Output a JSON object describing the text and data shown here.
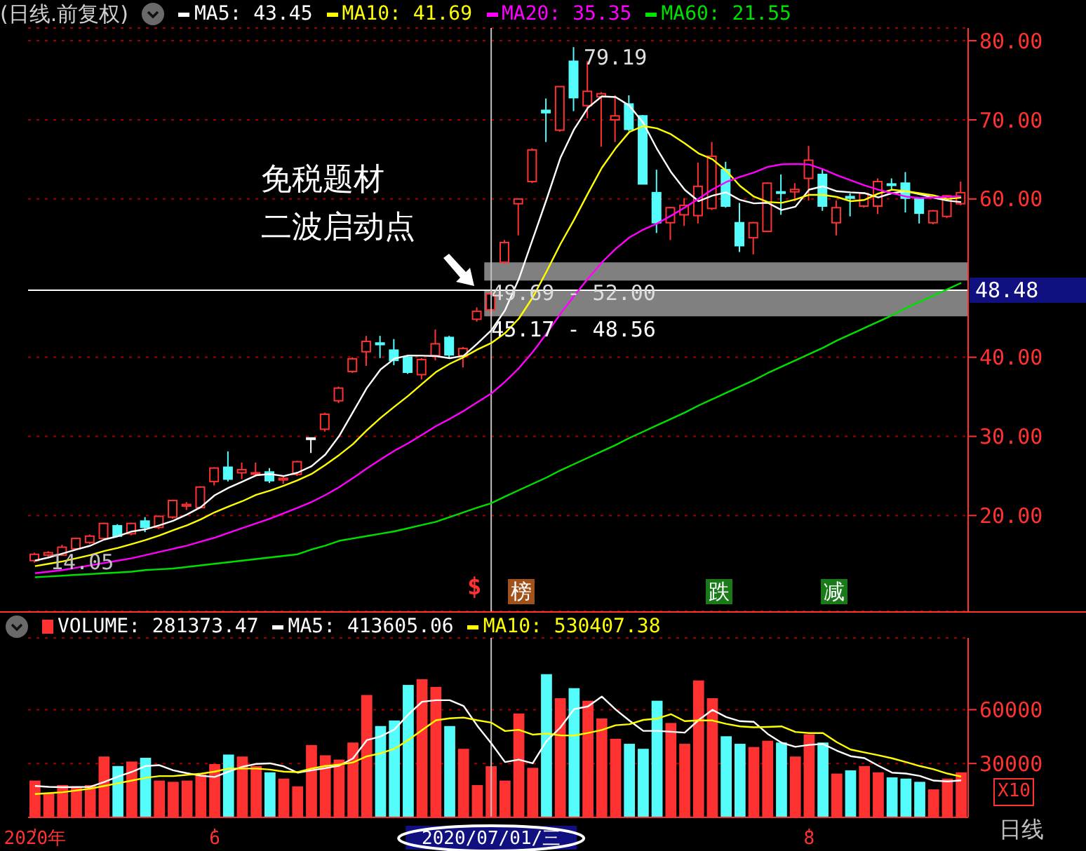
{
  "chart_data": [
    {
      "type": "candlestick",
      "title": "(日线.前复权)",
      "legend": "top",
      "grid": "y",
      "tick_labels": "y",
      "categories": [
        "2020年",
        null,
        null,
        null,
        null,
        null,
        null,
        null,
        null,
        null,
        null,
        null,
        null,
        "6",
        null,
        null,
        null,
        null,
        null,
        null,
        null,
        null,
        null,
        null,
        null,
        null,
        null,
        null,
        null,
        null,
        null,
        null,
        null,
        "2020/07/01/三",
        null,
        null,
        null,
        null,
        null,
        null,
        null,
        null,
        null,
        null,
        null,
        null,
        null,
        null,
        null,
        null,
        null,
        null,
        null,
        null,
        null,
        null,
        "8",
        null,
        null,
        null,
        null,
        null,
        null,
        null,
        null,
        null,
        null,
        null
      ],
      "ylim": [
        7.9,
        81.6
      ],
      "yticks": [
        {
          "value": 20,
          "label": "20.00"
        },
        {
          "value": 30,
          "label": "30.00"
        },
        {
          "value": 40,
          "label": "40.00"
        },
        {
          "value": 60,
          "label": "60.00"
        },
        {
          "value": 70,
          "label": "70.00"
        },
        {
          "value": 80,
          "label": "80.00"
        }
      ],
      "ohlc": [
        [
          14.3,
          15.3,
          14.05,
          15.1
        ],
        [
          15.0,
          15.5,
          14.8,
          15.3
        ],
        [
          15.0,
          16.3,
          14.9,
          16.0
        ],
        [
          15.8,
          17.2,
          15.6,
          17.1
        ],
        [
          16.6,
          17.6,
          16.4,
          17.4
        ],
        [
          17.1,
          19.1,
          17.0,
          19.0
        ],
        [
          18.7,
          18.9,
          17.3,
          17.4
        ],
        [
          17.7,
          19.1,
          17.5,
          19.0
        ],
        [
          19.3,
          19.8,
          17.9,
          18.5
        ],
        [
          18.5,
          20.0,
          18.3,
          19.9
        ],
        [
          19.8,
          22.0,
          19.6,
          21.9
        ],
        [
          21.2,
          21.7,
          20.7,
          21.4
        ],
        [
          21.0,
          23.7,
          20.9,
          23.6
        ],
        [
          24.3,
          26.1,
          23.8,
          26.0
        ],
        [
          26.1,
          28.1,
          24.3,
          24.6
        ],
        [
          25.4,
          26.7,
          24.6,
          25.8
        ],
        [
          25.3,
          26.7,
          24.9,
          25.4
        ],
        [
          25.5,
          26.0,
          24.1,
          24.4
        ],
        [
          24.5,
          25.0,
          24.0,
          24.7
        ],
        [
          25.2,
          26.9,
          25.0,
          26.8
        ],
        [
          29.8,
          29.8,
          27.9,
          29.8
        ],
        [
          30.9,
          33.0,
          30.6,
          32.8
        ],
        [
          34.5,
          36.3,
          34.2,
          36.1
        ],
        [
          38.2,
          40.0,
          38.0,
          39.8
        ],
        [
          40.7,
          42.7,
          38.9,
          42.0
        ],
        [
          41.8,
          42.7,
          39.9,
          41.6
        ],
        [
          40.9,
          42.3,
          39.0,
          39.6
        ],
        [
          40.0,
          40.3,
          37.9,
          38.1
        ],
        [
          37.8,
          39.9,
          37.2,
          39.7
        ],
        [
          40.2,
          43.5,
          39.6,
          41.7
        ],
        [
          42.5,
          42.7,
          39.9,
          40.3
        ],
        [
          40.2,
          41.3,
          38.7,
          41.1
        ],
        [
          44.8,
          46.3,
          44.5,
          45.8
        ],
        [
          46.0,
          48.56,
          45.17,
          48.0
        ],
        [
          52.0,
          54.8,
          51.8,
          54.5
        ],
        [
          59.4,
          60.0,
          55.4,
          60.0
        ],
        [
          62.2,
          66.4,
          62.0,
          66.2
        ],
        [
          71.2,
          72.7,
          67.2,
          70.9
        ],
        [
          68.7,
          74.2,
          68.5,
          74.2
        ],
        [
          77.4,
          79.19,
          71.1,
          72.8
        ],
        [
          71.8,
          77.4,
          70.2,
          73.6
        ],
        [
          72.9,
          73.5,
          66.6,
          73.3
        ],
        [
          70.0,
          73.1,
          67.2,
          70.5
        ],
        [
          72.0,
          73.1,
          68.6,
          68.8
        ],
        [
          70.5,
          70.6,
          61.9,
          61.9
        ],
        [
          60.8,
          63.7,
          55.7,
          57.0
        ],
        [
          57.0,
          59.0,
          54.8,
          58.9
        ],
        [
          58.0,
          60.1,
          56.6,
          59.2
        ],
        [
          57.9,
          64.6,
          56.9,
          61.6
        ],
        [
          58.8,
          67.2,
          58.6,
          65.4
        ],
        [
          63.7,
          64.7,
          58.9,
          59.1
        ],
        [
          57.0,
          59.5,
          53.3,
          54.1
        ],
        [
          55.1,
          57.1,
          53.0,
          57.0
        ],
        [
          55.9,
          62.1,
          55.8,
          62.0
        ],
        [
          60.9,
          63.1,
          58.0,
          60.8
        ],
        [
          60.9,
          62.0,
          59.7,
          61.2
        ],
        [
          62.6,
          66.7,
          59.8,
          64.9
        ],
        [
          63.1,
          63.8,
          58.5,
          59.1
        ],
        [
          57.0,
          59.8,
          55.4,
          58.9
        ],
        [
          60.3,
          60.7,
          57.8,
          60.1
        ],
        [
          59.1,
          60.8,
          58.9,
          60.7
        ],
        [
          59.1,
          62.6,
          58.1,
          62.2
        ],
        [
          61.9,
          62.6,
          61.1,
          61.8
        ],
        [
          62.0,
          63.4,
          58.3,
          60.1
        ],
        [
          60.0,
          60.1,
          56.9,
          58.2
        ],
        [
          57.0,
          58.6,
          56.8,
          58.5
        ],
        [
          57.8,
          60.5,
          57.6,
          60.4
        ],
        [
          59.4,
          62.2,
          59.2,
          60.8
        ]
      ],
      "colors": [
        "#ff3232",
        "#ff3232",
        "#ff3232",
        "#ff3232",
        "#ff3232",
        "#ff3232",
        "#54fcfc",
        "#ff3232",
        "#54fcfc",
        "#ff3232",
        "#ff3232",
        "#ff3232",
        "#ff3232",
        "#ff3232",
        "#54fcfc",
        "#ff3232",
        "#ff3232",
        "#54fcfc",
        "#ff3232",
        "#ff3232",
        "#ffffff",
        "#ff3232",
        "#ff3232",
        "#ff3232",
        "#ff3232",
        "#54fcfc",
        "#54fcfc",
        "#54fcfc",
        "#ff3232",
        "#ff3232",
        "#54fcfc",
        "#ff3232",
        "#ff3232",
        "#ff3232",
        "#ff3232",
        "#ff3232",
        "#ff3232",
        "#54fcfc",
        "#ff3232",
        "#54fcfc",
        "#ff3232",
        "#ff3232",
        "#ff3232",
        "#54fcfc",
        "#54fcfc",
        "#54fcfc",
        "#ff3232",
        "#ff3232",
        "#ff3232",
        "#ff3232",
        "#54fcfc",
        "#54fcfc",
        "#ff3232",
        "#ff3232",
        "#54fcfc",
        "#ff3232",
        "#ff3232",
        "#54fcfc",
        "#ff3232",
        "#54fcfc",
        "#ff3232",
        "#ff3232",
        "#54fcfc",
        "#54fcfc",
        "#54fcfc",
        "#ff3232",
        "#ff3232",
        "#ff3232"
      ],
      "series": [
        {
          "name": "MA5: 43.45",
          "type": "line",
          "color": "#ffffff",
          "values": [
            14.3,
            14.7,
            15.2,
            15.7,
            16.18,
            16.96,
            17.38,
            17.98,
            18.26,
            18.76,
            19.34,
            20.14,
            21.06,
            22.56,
            23.5,
            24.28,
            25.08,
            25.24,
            24.98,
            25.42,
            26.22,
            27.7,
            30.04,
            33.06,
            36.1,
            38.46,
            39.82,
            40.22,
            40.2,
            40.14,
            39.88,
            40.18,
            41.72,
            43.38,
            45.94,
            49.88,
            54.9,
            59.92,
            65.16,
            68.82,
            71.54,
            72.96,
            72.88,
            71.8,
            69.62,
            66.3,
            63.42,
            61.16,
            59.72,
            60.42,
            60.84,
            59.88,
            59.44,
            59.52,
            58.6,
            59.02,
            61.18,
            61.6,
            60.98,
            60.84,
            60.74,
            60.2,
            60.74,
            60.98,
            60.6,
            60.16,
            59.8,
            59.6
          ]
        },
        {
          "name": "MA10: 41.69",
          "type": "line",
          "color": "#ffff00",
          "values": [
            13.6,
            13.9,
            14.2,
            14.6,
            15.0,
            15.5,
            15.9,
            16.4,
            16.9,
            17.47,
            18.15,
            18.76,
            19.52,
            20.41,
            21.13,
            21.81,
            22.61,
            23.15,
            23.77,
            24.46,
            25.25,
            26.39,
            27.64,
            29.02,
            30.76,
            32.34,
            33.76,
            35.13,
            36.63,
            38.12,
            39.17,
            40.0,
            40.97,
            41.79,
            43.04,
            44.88,
            47.54,
            50.82,
            54.27,
            57.38,
            60.71,
            63.93,
            66.4,
            68.48,
            69.22,
            68.92,
            68.19,
            67.02,
            65.76,
            65.02,
            63.57,
            61.65,
            60.3,
            59.62,
            59.51,
            59.93,
            60.53,
            60.52,
            60.25,
            59.72,
            59.88,
            60.69,
            61.17,
            60.98,
            60.72,
            60.45,
            60.0,
            60.17
          ]
        },
        {
          "name": "MA20: 35.35",
          "type": "line",
          "color": "#ff00ff",
          "values": [
            12.7,
            12.9,
            13.1,
            13.4,
            13.7,
            14.0,
            14.3,
            14.6,
            15.0,
            15.4,
            15.8,
            16.2,
            16.7,
            17.2,
            17.8,
            18.4,
            19.0,
            19.6,
            20.3,
            20.97,
            21.7,
            22.58,
            23.58,
            24.72,
            25.95,
            27.08,
            28.19,
            29.14,
            30.2,
            31.29,
            32.21,
            33.2,
            34.31,
            35.4,
            36.9,
            38.61,
            40.65,
            42.98,
            45.45,
            47.75,
            49.94,
            51.97,
            53.69,
            55.14,
            56.13,
            56.9,
            57.87,
            58.92,
            60.02,
            61.2,
            62.14,
            62.79,
            63.35,
            64.05,
            64.37,
            64.43,
            64.36,
            63.77,
            63.01,
            62.37,
            61.73,
            61.17,
            60.74,
            60.3,
            60.12,
            60.19,
            60.27,
            60.35
          ]
        },
        {
          "name": "MA60: 21.55",
          "type": "line",
          "color": "#00e000",
          "values": [
            12.2,
            12.3,
            12.4,
            12.5,
            12.6,
            12.7,
            12.8,
            12.9,
            13.1,
            13.2,
            13.3,
            13.5,
            13.7,
            13.9,
            14.1,
            14.3,
            14.5,
            14.7,
            14.9,
            15.1,
            15.7,
            16.2,
            16.8,
            17.1,
            17.4,
            17.7,
            18.0,
            18.4,
            18.8,
            19.2,
            19.8,
            20.4,
            21.0,
            21.55,
            22.4,
            23.2,
            24.0,
            24.8,
            25.7,
            26.5,
            27.3,
            28.1,
            28.9,
            29.8,
            30.6,
            31.4,
            32.2,
            33.0,
            33.9,
            34.7,
            35.5,
            36.3,
            37.1,
            38.0,
            38.8,
            39.6,
            40.4,
            41.2,
            42.1,
            42.9,
            43.7,
            44.5,
            45.3,
            46.2,
            47.0,
            47.8,
            48.6,
            49.4
          ]
        }
      ],
      "ref_lines": [
        {
          "axis": "y",
          "value": 48.48,
          "label": "48.48",
          "color": "#ffffff"
        },
        {
          "axis": "x",
          "value": "2020/07/01/三",
          "color": "#c0c0c0"
        }
      ],
      "bands": [
        {
          "axis": "y",
          "from": 49.69,
          "to": 52.0,
          "label": "49.69 - 52.00",
          "color": "#808080"
        },
        {
          "axis": "y",
          "from": 45.17,
          "to": 48.56,
          "label": "45.17 - 48.56",
          "color": "#808080"
        }
      ],
      "annotations": [
        "79.19",
        {
          "text": "14.05",
          "y": 14.05
        },
        "免税题材",
        "二波启动点",
        "$",
        "榜",
        "跌",
        "减"
      ]
    },
    {
      "type": "bar",
      "legend": "top left",
      "grid": "y",
      "categories": [
        "2020年",
        null,
        null,
        null,
        null,
        null,
        null,
        null,
        null,
        null,
        null,
        null,
        null,
        "6",
        null,
        null,
        null,
        null,
        null,
        null,
        null,
        null,
        null,
        null,
        null,
        null,
        null,
        null,
        null,
        null,
        null,
        null,
        null,
        "2020/07/01/三",
        null,
        null,
        null,
        null,
        null,
        null,
        null,
        null,
        null,
        null,
        null,
        null,
        null,
        null,
        null,
        null,
        null,
        null,
        null,
        null,
        null,
        null,
        "8",
        null,
        null,
        null,
        null,
        null,
        null,
        null,
        null,
        null,
        null,
        null
      ],
      "ylim": [
        0,
        100000
      ],
      "yticks": [
        30000,
        60000
      ],
      "series": [
        {
          "name": "VOLUME: 281373.47",
          "type": "bar",
          "colors": [
            "#ff3232",
            "#ff3232",
            "#ff3232",
            "#ff3232",
            "#ff3232",
            "#ff3232",
            "#54fcfc",
            "#ff3232",
            "#54fcfc",
            "#ff3232",
            "#ff3232",
            "#ff3232",
            "#ff3232",
            "#ff3232",
            "#54fcfc",
            "#ff3232",
            "#ff3232",
            "#54fcfc",
            "#ff3232",
            "#ff3232",
            "#ff3232",
            "#ff3232",
            "#ff3232",
            "#ff3232",
            "#ff3232",
            "#54fcfc",
            "#54fcfc",
            "#54fcfc",
            "#ff3232",
            "#ff3232",
            "#54fcfc",
            "#ff3232",
            "#ff3232",
            "#ff3232",
            "#ff3232",
            "#ff3232",
            "#ff3232",
            "#54fcfc",
            "#ff3232",
            "#54fcfc",
            "#ff3232",
            "#ff3232",
            "#ff3232",
            "#54fcfc",
            "#54fcfc",
            "#54fcfc",
            "#ff3232",
            "#ff3232",
            "#ff3232",
            "#ff3232",
            "#54fcfc",
            "#54fcfc",
            "#ff3232",
            "#ff3232",
            "#54fcfc",
            "#ff3232",
            "#ff3232",
            "#54fcfc",
            "#ff3232",
            "#54fcfc",
            "#ff3232",
            "#ff3232",
            "#54fcfc",
            "#54fcfc",
            "#54fcfc",
            "#ff3232",
            "#ff3232",
            "#ff3232"
          ],
          "values": [
            20100,
            13100,
            17600,
            16600,
            17600,
            33500,
            28200,
            30700,
            32800,
            20100,
            19400,
            20100,
            23600,
            29300,
            34600,
            33500,
            28200,
            24700,
            21200,
            16900,
            39900,
            34200,
            31800,
            41300,
            67800,
            50500,
            53600,
            73400,
            76600,
            72300,
            50500,
            37800,
            17600,
            28100,
            20100,
            57500,
            27200,
            79400,
            66000,
            71600,
            64600,
            54700,
            43400,
            40600,
            37800,
            64600,
            52200,
            40600,
            75900,
            66000,
            44800,
            40600,
            38800,
            42300,
            41300,
            33500,
            45900,
            41300,
            24000,
            25800,
            28200,
            24700,
            21900,
            21200,
            19400,
            15200,
            21200,
            24700
          ]
        },
        {
          "name": "MA5: 413605.06",
          "type": "line",
          "color": "#ffffff",
          "values": [
            17500,
            17000,
            16800,
            16900,
            17000,
            19700,
            22700,
            25300,
            28600,
            29100,
            26200,
            24600,
            23200,
            22500,
            25400,
            28200,
            29800,
            30100,
            28400,
            24900,
            26200,
            27400,
            28800,
            32800,
            43000,
            45100,
            49000,
            57300,
            64400,
            65300,
            65300,
            62100,
            51000,
            41300,
            30800,
            32200,
            30100,
            42500,
            50000,
            60300,
            61800,
            67300,
            60100,
            53900,
            48200,
            48200,
            47700,
            47200,
            54200,
            59900,
            55900,
            53600,
            53200,
            46500,
            41600,
            39300,
            40400,
            40900,
            37200,
            34100,
            33000,
            28800,
            24900,
            24400,
            23100,
            20500,
            20000,
            20600
          ]
        },
        {
          "name": "MA10: 530407.38",
          "type": "line",
          "color": "#ffff00",
          "values": [
            13000,
            13500,
            14000,
            15000,
            16000,
            17500,
            19000,
            20500,
            22000,
            23000,
            23000,
            23700,
            24300,
            25500,
            27200,
            27200,
            27200,
            26600,
            25500,
            25200,
            27200,
            28600,
            29400,
            30600,
            34000,
            35700,
            38200,
            43100,
            48600,
            54100,
            55200,
            55600,
            54100,
            52800,
            48100,
            48800,
            46100,
            46700,
            45700,
            45600,
            47000,
            48700,
            51300,
            51900,
            54300,
            55000,
            57500,
            53600,
            54000,
            54000,
            52100,
            50700,
            50200,
            50400,
            50700,
            47600,
            47000,
            47000,
            41900,
            37800,
            36200,
            34600,
            32900,
            30800,
            28600,
            26800,
            24400,
            22700
          ]
        }
      ],
      "ref_lines": [
        {
          "axis": "x",
          "value": "2020/07/01/三",
          "color": "#c0c0c0"
        }
      ],
      "annotations": [
        "X10",
        "日线"
      ]
    }
  ]
}
